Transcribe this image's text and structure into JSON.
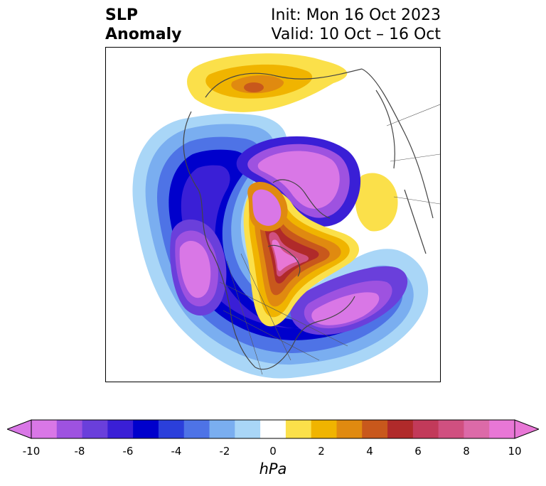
{
  "title": {
    "left_line1": "SLP",
    "left_line2": "Anomaly",
    "right_line1": "Init: Mon 16 Oct 2023",
    "right_line2": "Valid: 10 Oct – 16 Oct"
  },
  "colorbar": {
    "label": "hPa",
    "levels": [
      -10,
      -9,
      -8,
      -7,
      -6,
      -5,
      -4,
      -3,
      -2,
      -1,
      1,
      2,
      3,
      4,
      5,
      6,
      7,
      8,
      9,
      10
    ],
    "colors": [
      "#d977e6",
      "#9e52e0",
      "#6a3fdb",
      "#3a1fd6",
      "#0000cc",
      "#2b3fdb",
      "#4e73e6",
      "#7aaef0",
      "#a9d6f7",
      "#ffffff",
      "#fbe04a",
      "#f0b400",
      "#e08a10",
      "#c8581c",
      "#b02a2a",
      "#c23a5a",
      "#d05080",
      "#dc6aa8",
      "#e877d6"
    ],
    "tick_labels": [
      "-10",
      "-8",
      "-6",
      "-4",
      "-2",
      "0",
      "2",
      "4",
      "6",
      "8",
      "10"
    ],
    "extend": "both"
  },
  "map": {
    "projection": "north-polar-stereographic",
    "variable": "SLP anomaly"
  }
}
